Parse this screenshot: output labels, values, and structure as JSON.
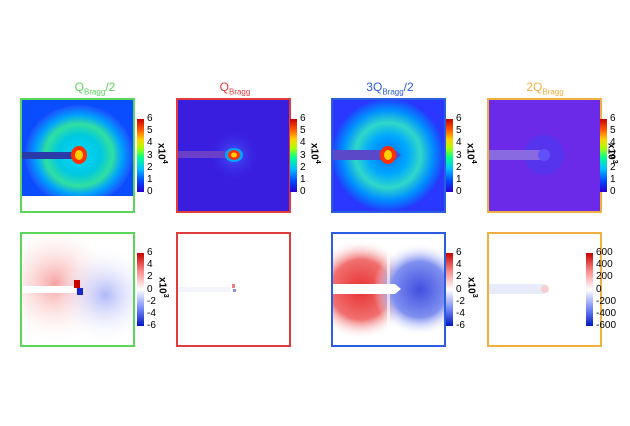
{
  "titles": [
    {
      "base": "Q",
      "sub": "Bragg",
      "suffix": "/2",
      "color": "#5ad65a"
    },
    {
      "base": "Q",
      "sub": "Bragg",
      "suffix": "",
      "color": "#e03c3c"
    },
    {
      "base": "3Q",
      "sub": "Bragg",
      "suffix": "/2",
      "color": "#2c5ce0"
    },
    {
      "base": "2Q",
      "sub": "Bragg",
      "suffix": "",
      "color": "#f0b040"
    }
  ],
  "colorbars": {
    "top": {
      "ticks": [
        "6",
        "5",
        "4",
        "3",
        "2",
        "1",
        "0"
      ],
      "units": [
        {
          "base": "x10",
          "exp": "4"
        },
        {
          "base": "x10",
          "exp": "4"
        },
        {
          "base": "x10",
          "exp": "4"
        },
        {
          "base": "x10",
          "exp": "3"
        }
      ]
    },
    "bottom": {
      "ticks_small": [
        "6",
        "4",
        "2",
        "0",
        "-2",
        "-4",
        "-6"
      ],
      "ticks_large": [
        "600",
        "400",
        "200",
        "0",
        "-200",
        "-400",
        "-600"
      ],
      "units": [
        {
          "base": "x10",
          "exp": "3"
        },
        {
          "base": "x10",
          "exp": "3"
        }
      ]
    }
  }
}
